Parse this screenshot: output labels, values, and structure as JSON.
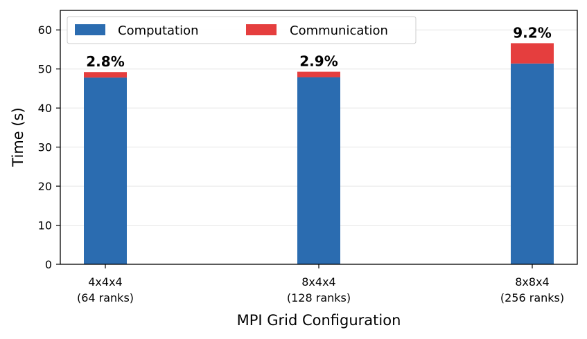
{
  "chart_data": {
    "type": "bar",
    "stacked": true,
    "categories": [
      [
        "4x4x4",
        "(64 ranks)"
      ],
      [
        "8x4x4",
        "(128 ranks)"
      ],
      [
        "8x8x4",
        "(256 ranks)"
      ]
    ],
    "series": [
      {
        "name": "Computation",
        "color": "#2b6cb0",
        "values": [
          47.8,
          47.9,
          51.4
        ]
      },
      {
        "name": "Communication",
        "color": "#e53e3e",
        "values": [
          1.4,
          1.4,
          5.2
        ]
      }
    ],
    "data_labels": [
      "2.8%",
      "2.9%",
      "9.2%"
    ],
    "xlabel": "MPI Grid Configuration",
    "ylabel": "Time (s)",
    "ylim": [
      0,
      65
    ],
    "yticks": [
      0,
      10,
      20,
      30,
      40,
      50,
      60
    ],
    "grid": "y",
    "legend": "top-left"
  }
}
